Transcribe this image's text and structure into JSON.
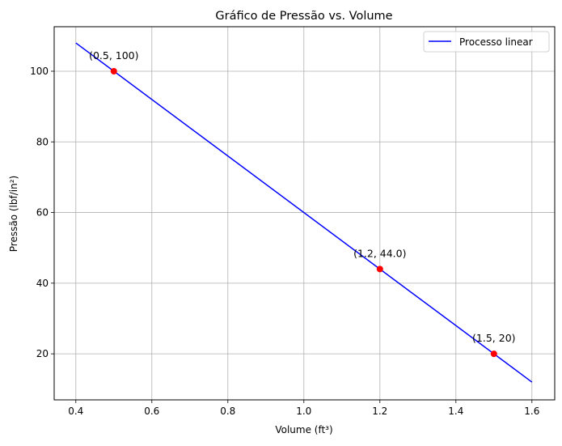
{
  "chart_data": {
    "type": "line",
    "title": "Gráfico de Pressão vs. Volume",
    "xlabel": "Volume (ft³)",
    "ylabel": "Pressão (lbf/in²)",
    "xlim": [
      0.343,
      1.66
    ],
    "ylim": [
      6.97,
      112.6
    ],
    "xticks": [
      0.4,
      0.6,
      0.8,
      1.0,
      1.2,
      1.4,
      1.6
    ],
    "xtick_labels": [
      "0.4",
      "0.6",
      "0.8",
      "1.0",
      "1.2",
      "1.4",
      "1.6"
    ],
    "yticks": [
      20,
      40,
      60,
      80,
      100
    ],
    "ytick_labels": [
      "20",
      "40",
      "60",
      "80",
      "100"
    ],
    "grid": true,
    "legend_position": "top-right",
    "series": [
      {
        "name": "Processo linear",
        "color": "#0000ff",
        "x": [
          0.4,
          1.6
        ],
        "y": [
          108,
          12
        ]
      }
    ],
    "points": [
      {
        "x": 0.5,
        "y": 100,
        "label": "(0.5, 100)"
      },
      {
        "x": 1.2,
        "y": 44,
        "label": "(1.2, 44.0)"
      },
      {
        "x": 1.5,
        "y": 20,
        "label": "(1.5, 20)"
      }
    ],
    "point_color": "#ff0000"
  }
}
